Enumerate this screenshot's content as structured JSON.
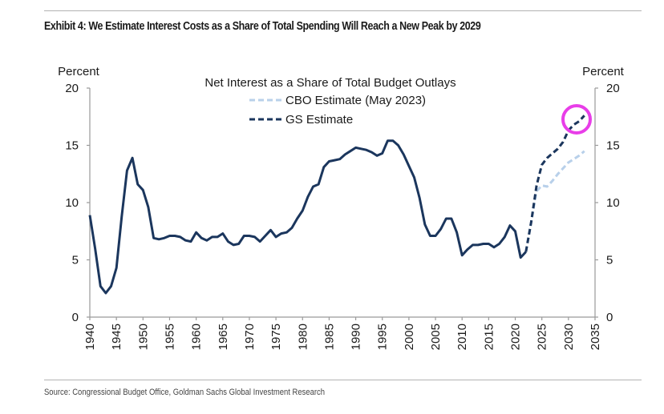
{
  "header": {
    "title": "Exhibit 4: We Estimate Interest Costs as a Share of Total Spending Will Reach a New Peak by 2029"
  },
  "footer": {
    "source": "Source: Congressional Budget Office, Goldman Sachs Global Investment Research"
  },
  "annotation": {
    "type": "circle-highlight",
    "color": "#e83ee8",
    "target": "GS Estimate endpoint (2033)"
  },
  "chart_data": {
    "type": "line",
    "title": "Net Interest as a Share of Total Budget Outlays",
    "xlabel": "",
    "ylabel_left": "Percent",
    "ylabel_right": "Percent",
    "xlim": [
      1940,
      2035
    ],
    "ylim": [
      0,
      20
    ],
    "x_ticks": [
      "1940",
      "1945",
      "1950",
      "1955",
      "1960",
      "1965",
      "1970",
      "1975",
      "1980",
      "1985",
      "1990",
      "1995",
      "2000",
      "2005",
      "2010",
      "2015",
      "2020",
      "2025",
      "2030",
      "2035"
    ],
    "y_ticks": [
      "0",
      "5",
      "10",
      "15",
      "20"
    ],
    "grid": false,
    "legend": {
      "placement": "top-center",
      "entries": [
        {
          "label": "CBO Estimate (May 2023)",
          "style": "dashed",
          "color": "#b8d0ea"
        },
        {
          "label": "GS Estimate",
          "style": "dashed",
          "color": "#1b365d"
        }
      ]
    },
    "series": [
      {
        "name": "Historical",
        "style": "solid",
        "color": "#1b365d",
        "x": [
          1940,
          1941,
          1942,
          1943,
          1944,
          1945,
          1946,
          1947,
          1948,
          1949,
          1950,
          1951,
          1952,
          1953,
          1954,
          1955,
          1956,
          1957,
          1958,
          1959,
          1960,
          1961,
          1962,
          1963,
          1964,
          1965,
          1966,
          1967,
          1968,
          1969,
          1970,
          1971,
          1972,
          1973,
          1974,
          1975,
          1976,
          1977,
          1978,
          1979,
          1980,
          1981,
          1982,
          1983,
          1984,
          1985,
          1986,
          1987,
          1988,
          1989,
          1990,
          1991,
          1992,
          1993,
          1994,
          1995,
          1996,
          1997,
          1998,
          1999,
          2000,
          2001,
          2002,
          2003,
          2004,
          2005,
          2006,
          2007,
          2008,
          2009,
          2010,
          2011,
          2012,
          2013,
          2014,
          2015,
          2016,
          2017,
          2018,
          2019,
          2020,
          2021,
          2022
        ],
        "values": [
          8.9,
          6.0,
          2.7,
          2.1,
          2.7,
          4.3,
          8.8,
          12.8,
          13.9,
          11.6,
          11.1,
          9.6,
          6.9,
          6.8,
          6.9,
          7.1,
          7.1,
          7.0,
          6.7,
          6.6,
          7.4,
          6.9,
          6.7,
          7.0,
          7.0,
          7.3,
          6.6,
          6.3,
          6.4,
          7.1,
          7.1,
          7.0,
          6.6,
          7.1,
          7.6,
          7.0,
          7.3,
          7.4,
          7.8,
          8.6,
          9.3,
          10.5,
          11.4,
          11.6,
          13.1,
          13.6,
          13.7,
          13.8,
          14.2,
          14.5,
          14.8,
          14.7,
          14.6,
          14.4,
          14.1,
          14.3,
          15.4,
          15.4,
          15.0,
          14.2,
          13.2,
          12.2,
          10.4,
          8.1,
          7.1,
          7.1,
          7.7,
          8.6,
          8.6,
          7.4,
          5.4,
          5.9,
          6.3,
          6.3,
          6.4,
          6.4,
          6.1,
          6.4,
          7.0,
          8.0,
          7.5,
          5.2,
          5.7
        ]
      },
      {
        "name": "CBO Estimate (May 2023)",
        "style": "dashed",
        "color": "#b8d0ea",
        "x": [
          2022,
          2023,
          2024,
          2025,
          2026,
          2027,
          2028,
          2029,
          2030,
          2031,
          2032,
          2033
        ],
        "values": [
          5.7,
          8.3,
          11.0,
          11.5,
          11.4,
          11.9,
          12.5,
          13.0,
          13.5,
          13.8,
          14.1,
          14.5
        ]
      },
      {
        "name": "GS Estimate",
        "style": "dashed",
        "color": "#1b365d",
        "x": [
          2022,
          2023,
          2024,
          2025,
          2026,
          2027,
          2028,
          2029,
          2030,
          2031,
          2032,
          2033
        ],
        "values": [
          5.7,
          8.3,
          11.5,
          13.3,
          13.9,
          14.3,
          14.7,
          15.3,
          16.3,
          16.8,
          17.1,
          17.6
        ]
      }
    ]
  }
}
